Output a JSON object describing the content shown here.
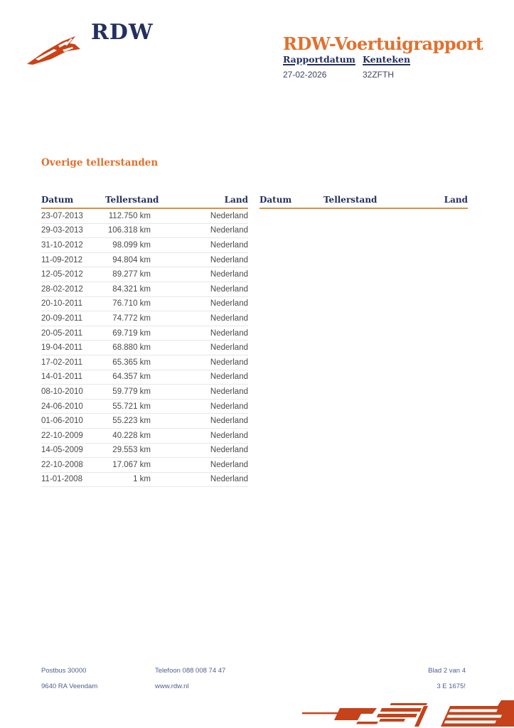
{
  "logo": {
    "text": "RDW"
  },
  "header": {
    "title": "RDW-Voertuigrapport",
    "report_date_label": "Rapportdatum",
    "report_date_value": "27-02-2026",
    "license_label": "Kenteken",
    "license_value": "32ZFTH"
  },
  "section": {
    "title": "Overige tellerstanden"
  },
  "tables": [
    {
      "columns": [
        "Datum",
        "Tellerstand",
        "Land"
      ],
      "rows": [
        [
          "23-07-2013",
          "112.750 km",
          "Nederland"
        ],
        [
          "29-03-2013",
          "106.318 km",
          "Nederland"
        ],
        [
          "31-10-2012",
          "98.099 km",
          "Nederland"
        ],
        [
          "11-09-2012",
          "94.804 km",
          "Nederland"
        ],
        [
          "12-05-2012",
          "89.277 km",
          "Nederland"
        ],
        [
          "28-02-2012",
          "84.321 km",
          "Nederland"
        ],
        [
          "20-10-2011",
          "76.710 km",
          "Nederland"
        ],
        [
          "20-09-2011",
          "74.772 km",
          "Nederland"
        ],
        [
          "20-05-2011",
          "69.719 km",
          "Nederland"
        ],
        [
          "19-04-2011",
          "68.880 km",
          "Nederland"
        ],
        [
          "17-02-2011",
          "65.365 km",
          "Nederland"
        ],
        [
          "14-01-2011",
          "64.357 km",
          "Nederland"
        ],
        [
          "08-10-2010",
          "59.779 km",
          "Nederland"
        ],
        [
          "24-06-2010",
          "55.721 km",
          "Nederland"
        ],
        [
          "01-06-2010",
          "55.223 km",
          "Nederland"
        ],
        [
          "22-10-2009",
          "40.228 km",
          "Nederland"
        ],
        [
          "14-05-2009",
          "29.553 km",
          "Nederland"
        ],
        [
          "22-10-2008",
          "17.067 km",
          "Nederland"
        ],
        [
          "11-01-2008",
          "1 km",
          "Nederland"
        ]
      ]
    },
    {
      "columns": [
        "Datum",
        "Tellerstand",
        "Land"
      ],
      "rows": []
    }
  ],
  "footer": {
    "address_line1": "Postbus 30000",
    "address_line2": "9640 RA Veendam",
    "phone": "Telefoon 088 008 74 47",
    "website": "www.rdw.nl",
    "page_indicator": "Blad 2 van 4",
    "doc_code": "3 E 1675!"
  },
  "colors": {
    "brand_orange": "#cc4115",
    "heading_orange": "#e2702d",
    "navy": "#23305f",
    "table_rule": "#d3914a",
    "row_divider": "#e7e7e7",
    "footer_text": "#4f5d8f"
  }
}
